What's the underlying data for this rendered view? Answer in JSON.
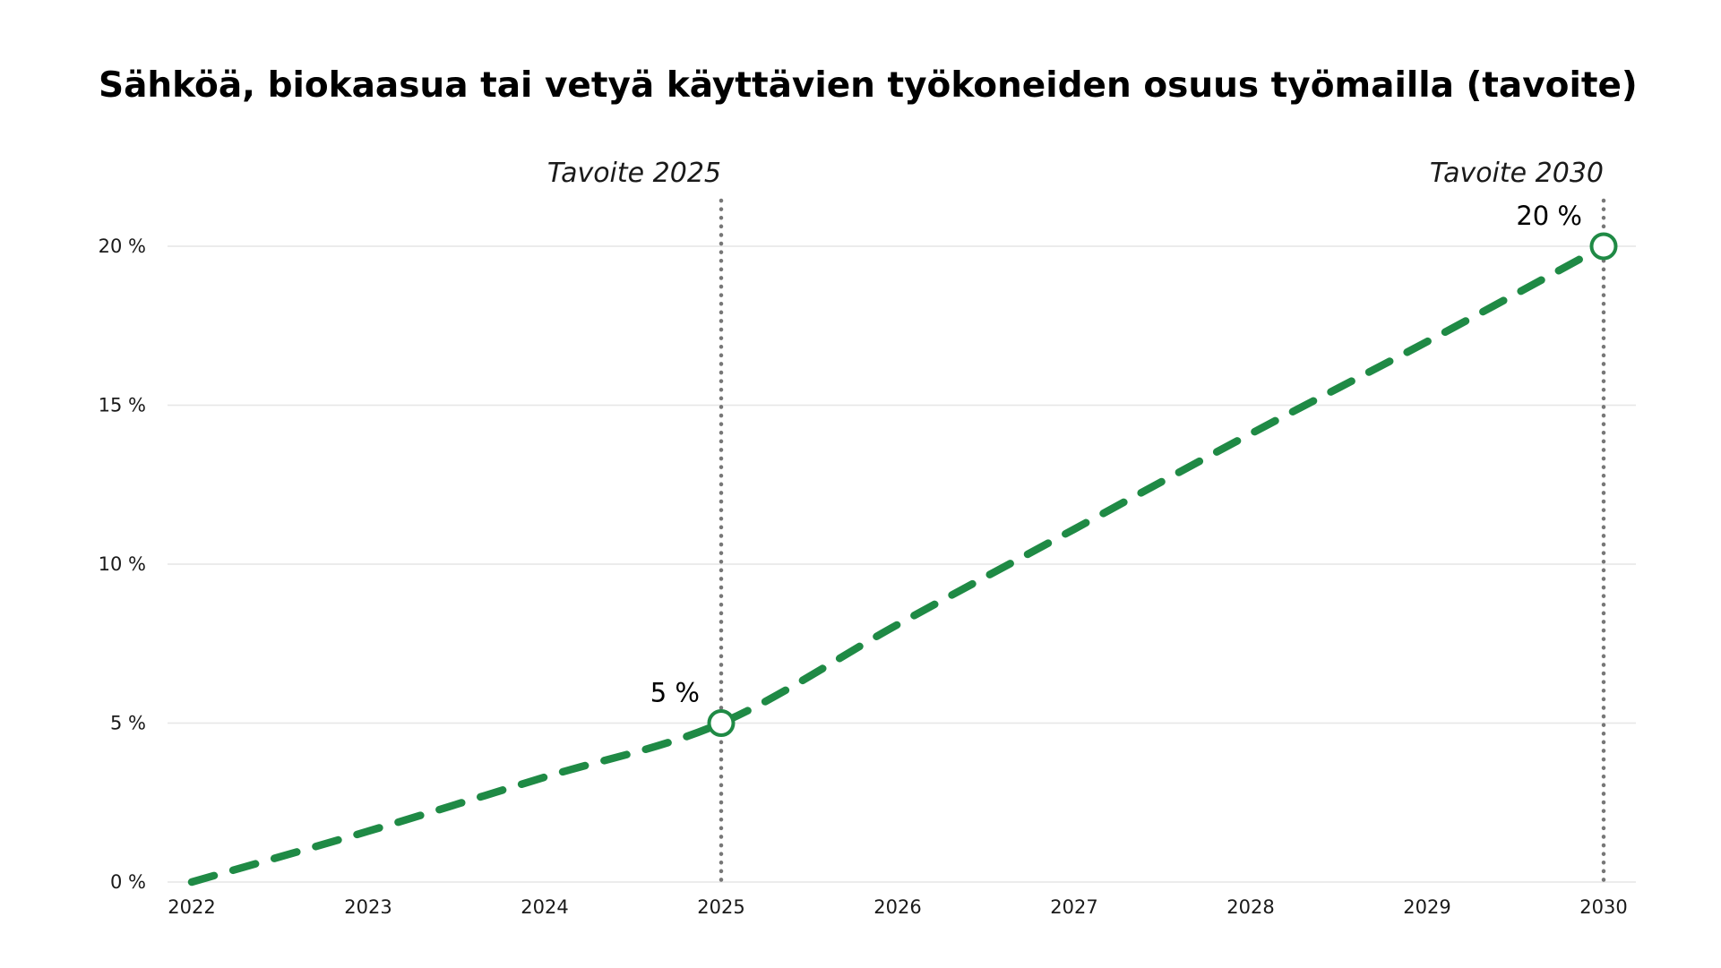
{
  "chart_data": {
    "type": "line",
    "title": "Sähköä, biokaasua tai vetyä käyttävien työkoneiden osuus työmailla (tavoite)",
    "xlabel": "",
    "ylabel": "",
    "x": [
      2022,
      2023,
      2024,
      2025,
      2026,
      2027,
      2028,
      2029,
      2030
    ],
    "x_tick_labels": [
      "2022",
      "2023",
      "2024",
      "2025",
      "2026",
      "2027",
      "2028",
      "2029",
      "2030"
    ],
    "ylim": [
      0,
      20
    ],
    "y_ticks": [
      0,
      5,
      10,
      15,
      20
    ],
    "y_tick_labels": [
      "0 %",
      "5 %",
      "10 %",
      "15 %",
      "20 %"
    ],
    "grid": true,
    "series": [
      {
        "line_style": "dashed",
        "color": "#1f8a45",
        "x": [
          2022,
          2023,
          2024,
          2025,
          2026,
          2027,
          2028,
          2029,
          2030
        ],
        "values": [
          0,
          1.6,
          3.3,
          5,
          8.1,
          11.1,
          14.1,
          17,
          20
        ]
      }
    ],
    "target_lines": [
      {
        "x": 2025,
        "label": "Tavoite 2025",
        "color": "#777777",
        "style": "dotted"
      },
      {
        "x": 2030,
        "label": "Tavoite 2030",
        "color": "#777777",
        "style": "dotted"
      }
    ],
    "markers": [
      {
        "x": 2025,
        "y": 5,
        "label": "5 %"
      },
      {
        "x": 2030,
        "y": 20,
        "label": "20 %"
      }
    ]
  },
  "colors": {
    "series": "#1f8a45",
    "grid": "#e6e6e6",
    "target_line": "#777777",
    "text": "#000000"
  }
}
